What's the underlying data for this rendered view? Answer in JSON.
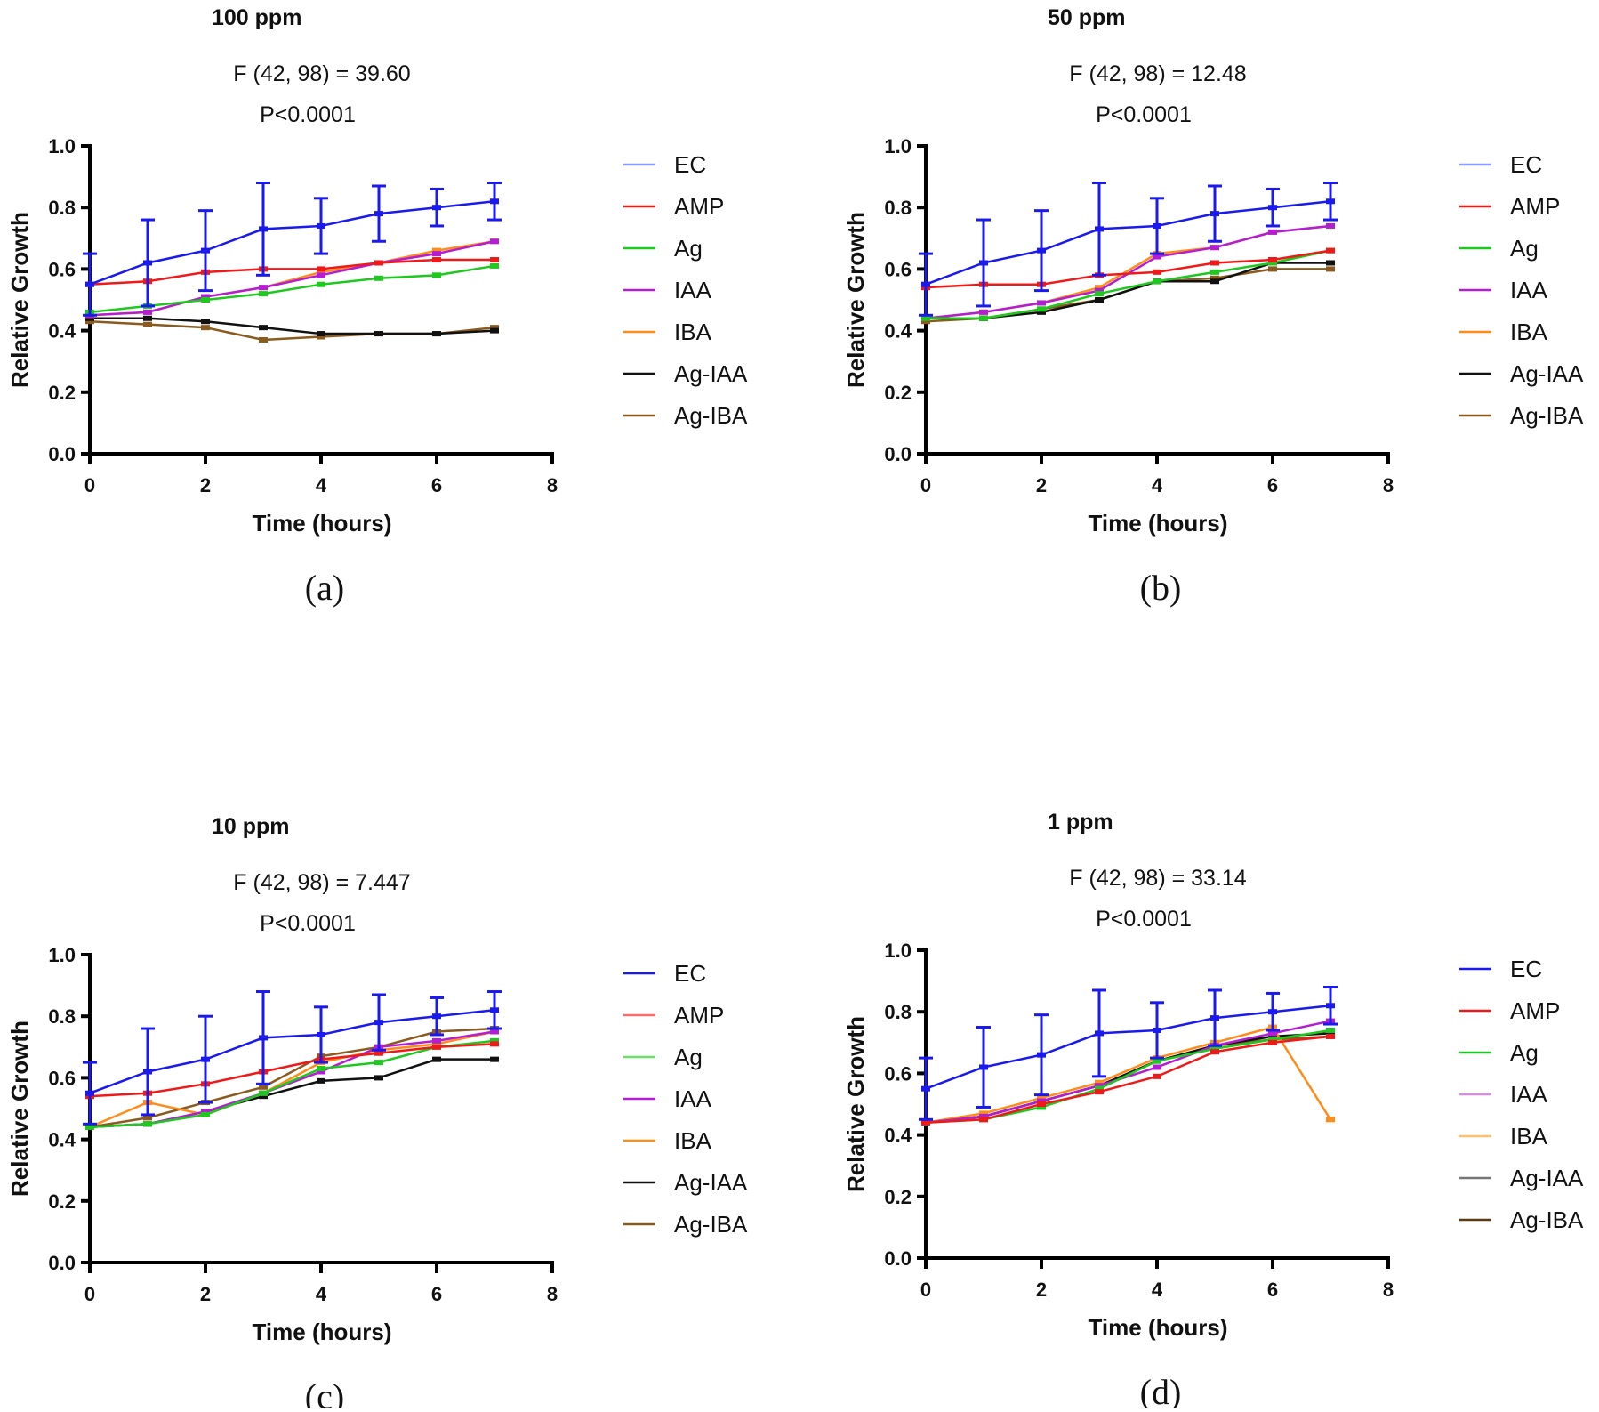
{
  "chart_data": [
    {
      "type": "line",
      "panel_label": "(a)",
      "title": "100 ppm",
      "stat_line1": "F (42, 98) = 39.60",
      "stat_line2": "P<0.0001",
      "xlabel": "Time (hours)",
      "ylabel": "Relative Growth",
      "xlim": [
        0,
        8
      ],
      "ylim": [
        0,
        1.0
      ],
      "xticks": [
        "0",
        "2",
        "4",
        "6",
        "8"
      ],
      "yticks": [
        "0.0",
        "0.2",
        "0.4",
        "0.6",
        "0.8",
        "1.0"
      ],
      "x": [
        0,
        1,
        2,
        3,
        4,
        5,
        6,
        7
      ],
      "legend_placement": "right",
      "series": [
        {
          "name": "EC",
          "color": "#1a1aee",
          "legend_color": "#8f9cff",
          "values": [
            0.55,
            0.62,
            0.66,
            0.73,
            0.74,
            0.78,
            0.8,
            0.82
          ],
          "err": [
            0.1,
            0.14,
            0.13,
            0.15,
            0.09,
            0.09,
            0.06,
            0.06
          ]
        },
        {
          "name": "AMP",
          "color": "#ee1a1a",
          "values": [
            0.55,
            0.56,
            0.59,
            0.6,
            0.6,
            0.62,
            0.63,
            0.63
          ]
        },
        {
          "name": "Ag",
          "color": "#1ec81e",
          "values": [
            0.46,
            0.48,
            0.5,
            0.52,
            0.55,
            0.57,
            0.58,
            0.61
          ]
        },
        {
          "name": "IAA",
          "color": "#b41ed2",
          "values": [
            0.45,
            0.46,
            0.51,
            0.54,
            0.58,
            0.62,
            0.65,
            0.69
          ]
        },
        {
          "name": "IBA",
          "color": "#ff8c1a",
          "values": [
            0.45,
            0.46,
            0.51,
            0.54,
            0.59,
            0.62,
            0.66,
            0.69
          ]
        },
        {
          "name": "Ag-IAA",
          "color": "#111111",
          "values": [
            0.44,
            0.44,
            0.43,
            0.41,
            0.39,
            0.39,
            0.39,
            0.4
          ]
        },
        {
          "name": "Ag-IBA",
          "color": "#8b5a1e",
          "values": [
            0.43,
            0.42,
            0.41,
            0.37,
            0.38,
            0.39,
            0.39,
            0.41
          ]
        }
      ]
    },
    {
      "type": "line",
      "panel_label": "(b)",
      "title": "50 ppm",
      "stat_line1": "F (42, 98) = 12.48",
      "stat_line2": "P<0.0001",
      "xlabel": "Time (hours)",
      "ylabel": "Relative Growth",
      "xlim": [
        0,
        8
      ],
      "ylim": [
        0,
        1.0
      ],
      "xticks": [
        "0",
        "2",
        "4",
        "6",
        "8"
      ],
      "yticks": [
        "0.0",
        "0.2",
        "0.4",
        "0.6",
        "0.8",
        "1.0"
      ],
      "x": [
        0,
        1,
        2,
        3,
        4,
        5,
        6,
        7
      ],
      "legend_placement": "right",
      "series": [
        {
          "name": "EC",
          "color": "#1a1aee",
          "legend_color": "#8f9cff",
          "values": [
            0.55,
            0.62,
            0.66,
            0.73,
            0.74,
            0.78,
            0.8,
            0.82
          ],
          "err": [
            0.1,
            0.14,
            0.13,
            0.15,
            0.09,
            0.09,
            0.06,
            0.06
          ]
        },
        {
          "name": "AMP",
          "color": "#ee1a1a",
          "values": [
            0.54,
            0.55,
            0.55,
            0.58,
            0.59,
            0.62,
            0.63,
            0.66
          ]
        },
        {
          "name": "Ag",
          "color": "#1ec81e",
          "values": [
            0.44,
            0.44,
            0.47,
            0.52,
            0.56,
            0.59,
            0.62,
            0.66
          ]
        },
        {
          "name": "IAA",
          "color": "#b41ed2",
          "values": [
            0.44,
            0.46,
            0.49,
            0.53,
            0.64,
            0.67,
            0.72,
            0.74
          ]
        },
        {
          "name": "IBA",
          "color": "#ff8c1a",
          "values": [
            0.44,
            0.46,
            0.49,
            0.54,
            0.65,
            0.67,
            0.72,
            0.74
          ]
        },
        {
          "name": "Ag-IAA",
          "color": "#111111",
          "values": [
            0.44,
            0.44,
            0.46,
            0.5,
            0.56,
            0.56,
            0.62,
            0.62
          ]
        },
        {
          "name": "Ag-IBA",
          "color": "#8b5a1e",
          "values": [
            0.43,
            0.44,
            0.47,
            0.5,
            0.56,
            0.57,
            0.6,
            0.6
          ]
        }
      ]
    },
    {
      "type": "line",
      "panel_label": "(c)",
      "title": "10 ppm",
      "stat_line1": "F (42, 98) = 7.447",
      "stat_line2": "P<0.0001",
      "xlabel": "Time (hours)",
      "ylabel": "Relative Growth",
      "xlim": [
        0,
        8
      ],
      "ylim": [
        0,
        1.0
      ],
      "xticks": [
        "0",
        "2",
        "4",
        "6",
        "8"
      ],
      "yticks": [
        "0.0",
        "0.2",
        "0.4",
        "0.6",
        "0.8",
        "1.0"
      ],
      "x": [
        0,
        1,
        2,
        3,
        4,
        5,
        6,
        7
      ],
      "legend_placement": "right",
      "series": [
        {
          "name": "EC",
          "color": "#1a1aee",
          "values": [
            0.55,
            0.62,
            0.66,
            0.73,
            0.74,
            0.78,
            0.8,
            0.82
          ],
          "err": [
            0.1,
            0.14,
            0.14,
            0.15,
            0.09,
            0.09,
            0.06,
            0.06
          ]
        },
        {
          "name": "AMP",
          "color": "#ee1a1a",
          "legend_color": "#ff6a6a",
          "values": [
            0.54,
            0.55,
            0.58,
            0.62,
            0.66,
            0.68,
            0.7,
            0.71
          ]
        },
        {
          "name": "Ag",
          "color": "#1ec81e",
          "legend_color": "#6ae06a",
          "values": [
            0.44,
            0.45,
            0.48,
            0.55,
            0.63,
            0.65,
            0.7,
            0.72
          ]
        },
        {
          "name": "IAA",
          "color": "#b41ed2",
          "values": [
            0.44,
            0.45,
            0.49,
            0.55,
            0.62,
            0.7,
            0.72,
            0.75
          ]
        },
        {
          "name": "IBA",
          "color": "#ff8c1a",
          "values": [
            0.44,
            0.52,
            0.48,
            0.55,
            0.65,
            0.69,
            0.71,
            0.75
          ]
        },
        {
          "name": "Ag-IAA",
          "color": "#111111",
          "values": [
            0.44,
            0.45,
            0.49,
            0.54,
            0.59,
            0.6,
            0.66,
            0.66
          ]
        },
        {
          "name": "Ag-IBA",
          "color": "#8b5a1e",
          "values": [
            0.44,
            0.47,
            0.52,
            0.57,
            0.67,
            0.7,
            0.75,
            0.76
          ]
        }
      ]
    },
    {
      "type": "line",
      "panel_label": "(d)",
      "title": "1 ppm",
      "stat_line1": "F (42, 98) = 33.14",
      "stat_line2": "P<0.0001",
      "xlabel": "Time (hours)",
      "ylabel": "Relative Growth",
      "xlim": [
        0,
        8
      ],
      "ylim": [
        0,
        1.0
      ],
      "xticks": [
        "0",
        "2",
        "4",
        "6",
        "8"
      ],
      "yticks": [
        "0.0",
        "0.2",
        "0.4",
        "0.6",
        "0.8",
        "1.0"
      ],
      "x": [
        0,
        1,
        2,
        3,
        4,
        5,
        6,
        7
      ],
      "legend_placement": "right",
      "series": [
        {
          "name": "EC",
          "color": "#1a1aee",
          "values": [
            0.55,
            0.62,
            0.66,
            0.73,
            0.74,
            0.78,
            0.8,
            0.82
          ],
          "err": [
            0.1,
            0.13,
            0.13,
            0.14,
            0.09,
            0.09,
            0.06,
            0.06
          ]
        },
        {
          "name": "AMP",
          "color": "#ee1a1a",
          "values": [
            0.44,
            0.45,
            0.5,
            0.54,
            0.59,
            0.67,
            0.7,
            0.72
          ]
        },
        {
          "name": "Ag",
          "color": "#1ec81e",
          "values": [
            0.44,
            0.45,
            0.49,
            0.55,
            0.64,
            0.68,
            0.71,
            0.74
          ]
        },
        {
          "name": "IAA",
          "color": "#b41ed2",
          "legend_color": "#d98ae8",
          "values": [
            0.44,
            0.46,
            0.51,
            0.56,
            0.62,
            0.69,
            0.73,
            0.77
          ]
        },
        {
          "name": "IBA",
          "color": "#ff8c1a",
          "legend_color": "#ffc070",
          "values": [
            0.44,
            0.47,
            0.52,
            0.57,
            0.65,
            0.7,
            0.75,
            0.45
          ]
        },
        {
          "name": "Ag-IAA",
          "color": "#111111",
          "legend_color": "#777777",
          "values": [
            0.44,
            0.46,
            0.51,
            0.56,
            0.64,
            0.69,
            0.72,
            0.73
          ]
        },
        {
          "name": "Ag-IBA",
          "color": "#8b5a1e",
          "legend_color": "#5a3a10",
          "values": [
            0.44,
            0.46,
            0.51,
            0.56,
            0.64,
            0.69,
            0.71,
            0.72
          ]
        }
      ]
    }
  ]
}
